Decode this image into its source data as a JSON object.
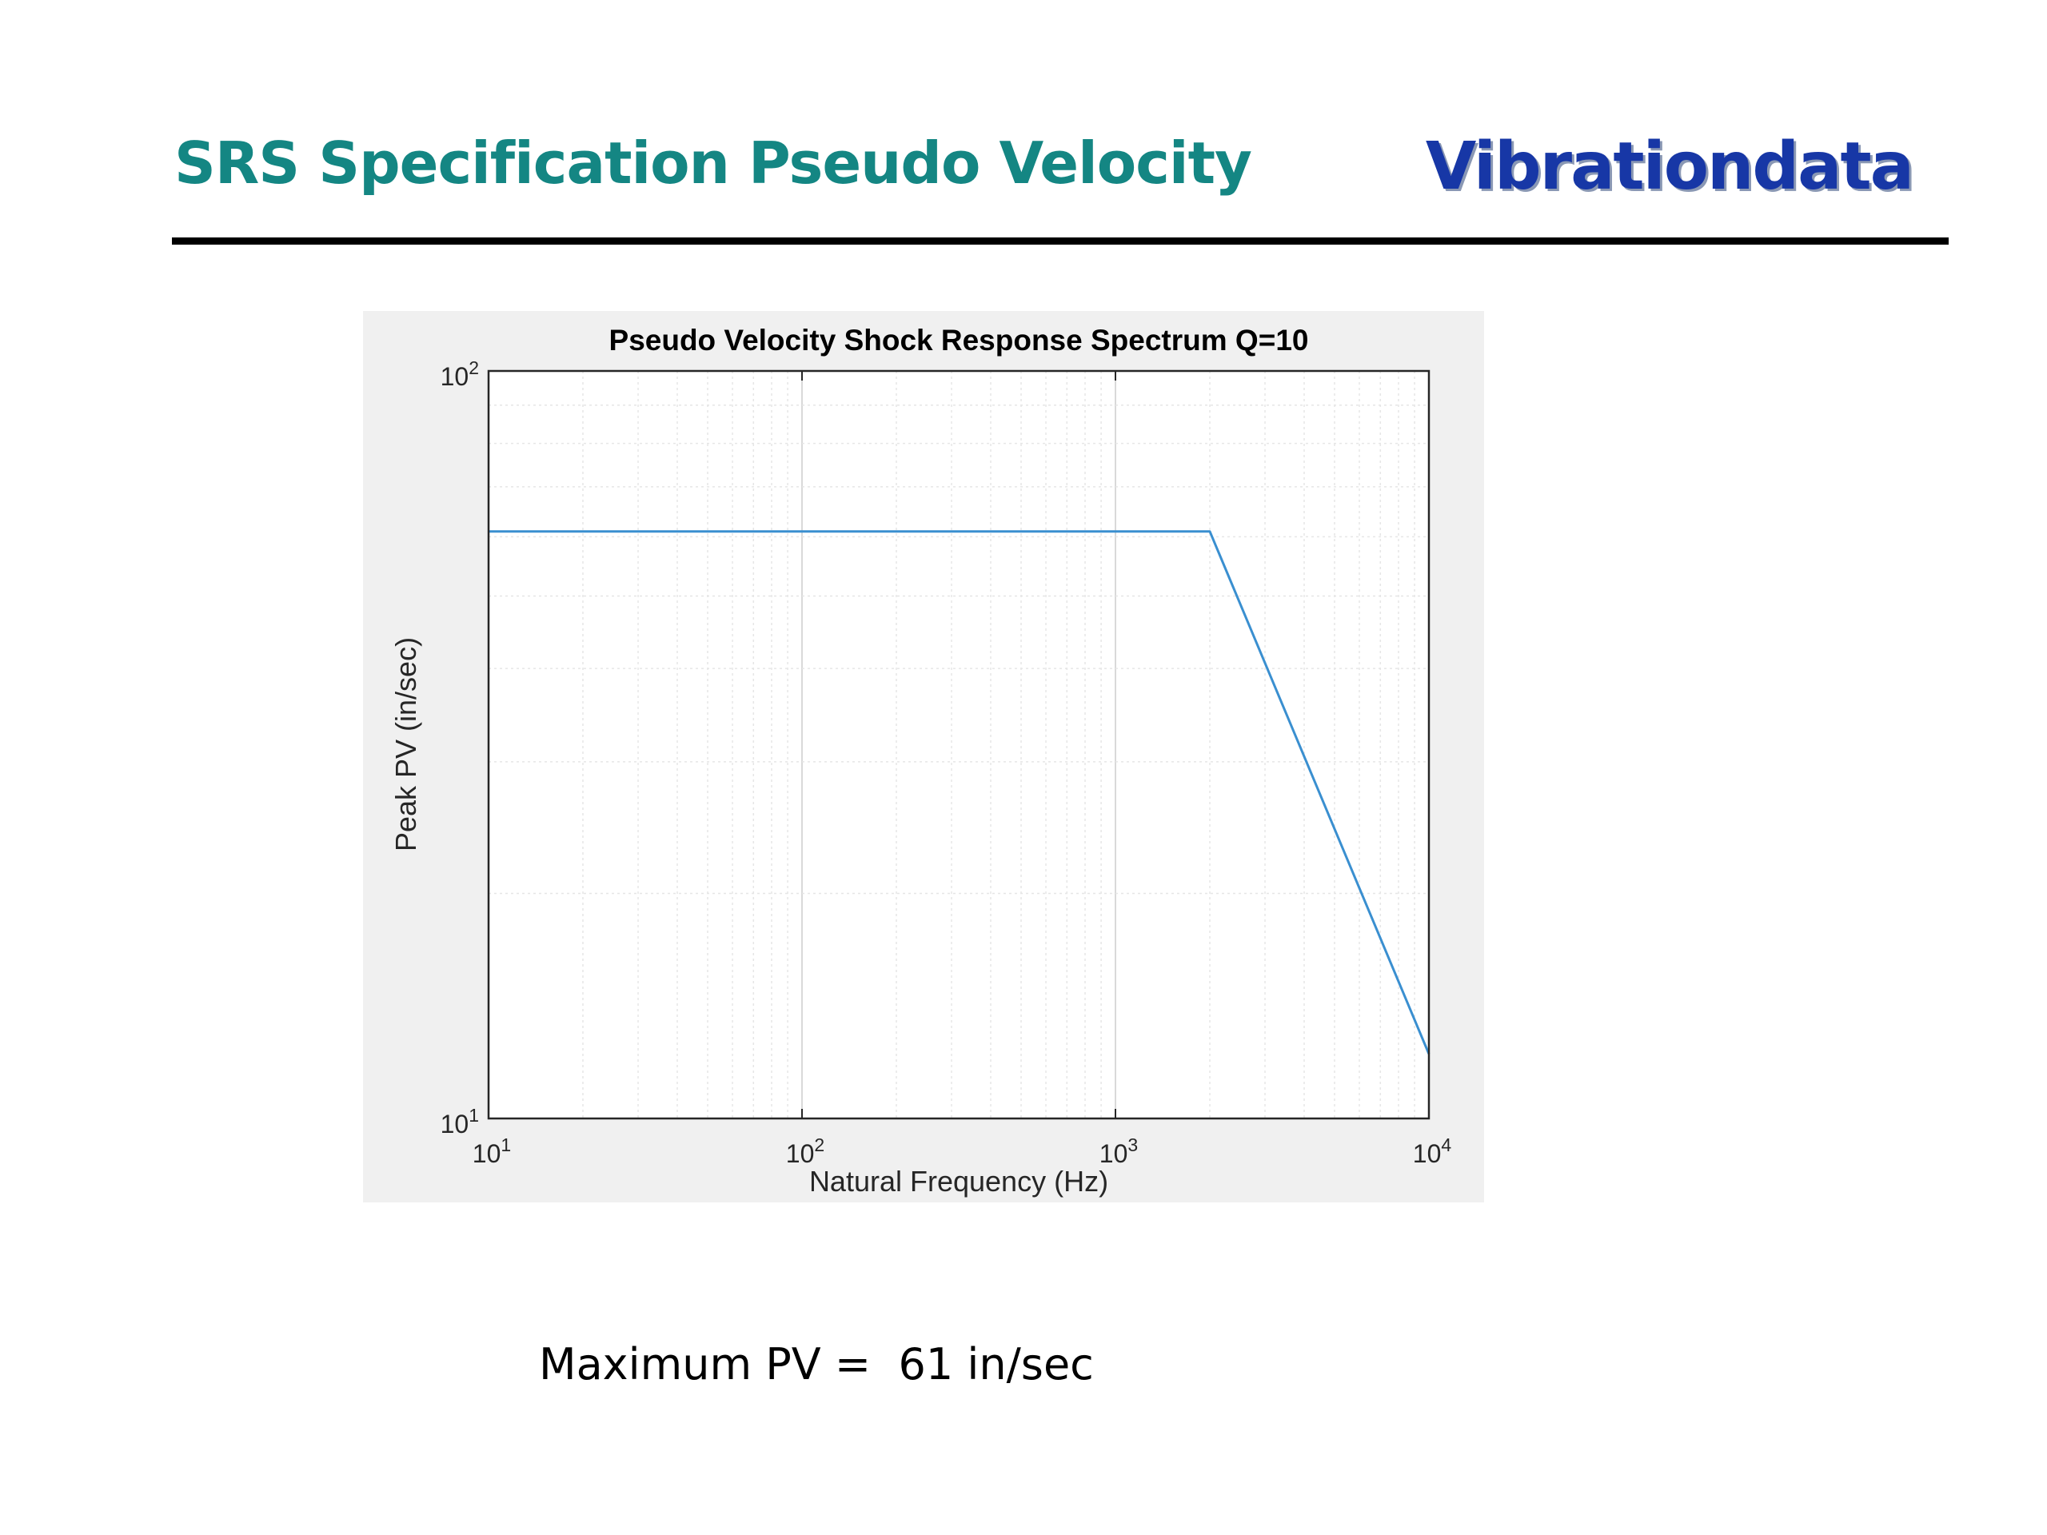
{
  "slide": {
    "title": "SRS Specification Pseudo Velocity",
    "logo": "Vibrationdata",
    "caption_label": "Maximum PV = ",
    "caption_value": "61",
    "caption_unit": "in/sec"
  },
  "colors": {
    "title": "#148683",
    "logo": "#1737a6",
    "line": "#3a8fd0",
    "figure_bg": "#f0f0f0"
  },
  "chart_data": {
    "type": "line",
    "title": "Pseudo Velocity Shock Response Spectrum Q=10",
    "xlabel": "Natural Frequency (Hz)",
    "ylabel": "Peak PV (in/sec)",
    "xscale": "log",
    "yscale": "log",
    "xlim": [
      10,
      10000
    ],
    "ylim": [
      10,
      100
    ],
    "grid": true,
    "minor_grid": true,
    "x_ticks": [
      {
        "base": "10",
        "exp": "1"
      },
      {
        "base": "10",
        "exp": "2"
      },
      {
        "base": "10",
        "exp": "3"
      },
      {
        "base": "10",
        "exp": "4"
      }
    ],
    "y_ticks": [
      {
        "base": "10",
        "exp": "1"
      },
      {
        "base": "10",
        "exp": "2"
      }
    ],
    "series": [
      {
        "color": "#3a8fd0",
        "x": [
          10,
          2000,
          10000
        ],
        "y": [
          61,
          61,
          12.2
        ]
      }
    ]
  }
}
